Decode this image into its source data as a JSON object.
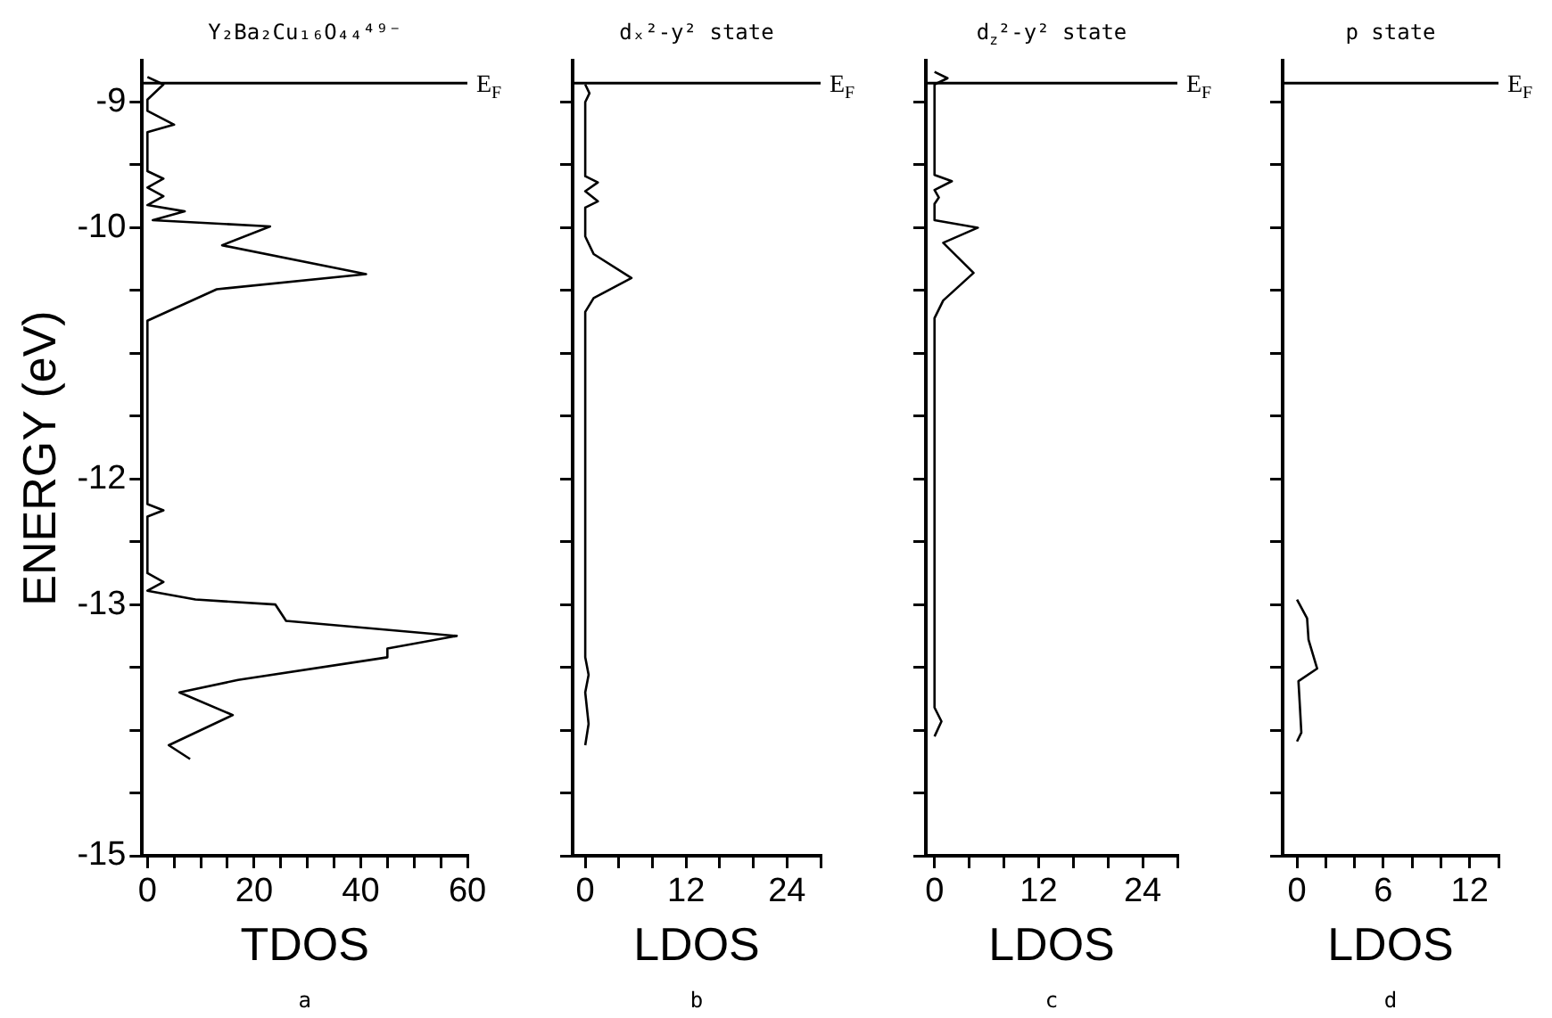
{
  "chart_data": [
    {
      "type": "line",
      "title": "Y₂Ba₂Cu₁₆O₄₄⁴⁹⁻",
      "xlabel": "TDOS",
      "ylabel": "ENERGY (eV)",
      "series": [
        {
          "color": "#000000",
          "x": [
            0,
            3,
            0,
            0,
            5,
            0,
            0,
            3,
            0,
            3,
            0,
            7,
            1,
            23,
            14,
            41,
            13,
            0,
            0,
            3,
            0,
            0,
            3,
            0,
            9,
            24,
            26,
            58,
            45,
            45,
            17,
            6,
            16,
            4,
            8
          ],
          "values": [
            -8.8,
            -8.86,
            -8.98,
            -9.07,
            -9.18,
            -9.24,
            -9.55,
            -9.61,
            -9.68,
            -9.75,
            -9.82,
            -9.87,
            -9.94,
            -9.99,
            -10.14,
            -10.37,
            -10.49,
            -10.74,
            -12.2,
            -12.25,
            -12.3,
            -12.75,
            -12.82,
            -12.89,
            -12.96,
            -13.0,
            -13.13,
            -13.25,
            -13.35,
            -13.42,
            -13.6,
            -13.7,
            -13.88,
            -14.12,
            -14.23
          ]
        }
      ],
      "xlim": [
        -1,
        60
      ],
      "xticks": [
        0,
        {
          "value": 5,
          "label": null
        },
        {
          "value": 10,
          "label": null
        },
        {
          "value": 15,
          "label": null
        },
        20,
        {
          "value": 25,
          "label": null
        },
        {
          "value": 30,
          "label": null
        },
        {
          "value": 35,
          "label": null
        },
        40,
        {
          "value": 45,
          "label": null
        },
        {
          "value": 50,
          "label": null
        },
        {
          "value": 55,
          "label": null
        },
        60
      ],
      "ylim": [
        -15,
        -8.67
      ],
      "yticks": [
        -9,
        {
          "value": -9.5,
          "label": null
        },
        -10,
        {
          "value": -10.5,
          "label": null
        },
        {
          "value": -11,
          "label": null
        },
        {
          "value": -11.5,
          "label": null
        },
        -12,
        {
          "value": -12.5,
          "label": null
        },
        -13,
        {
          "value": -13.5,
          "label": null
        },
        {
          "value": -14,
          "label": null
        },
        {
          "value": -14.5,
          "label": null
        },
        -15
      ],
      "ref_lines": [
        {
          "axis": "y",
          "value": -8.85,
          "label": "E$_{F}$"
        }
      ],
      "annotations": [
        "a"
      ]
    },
    {
      "type": "line",
      "title": "dₓ²-y² state",
      "xlabel": "LDOS",
      "series": [
        {
          "color": "#000000",
          "x": [
            0,
            0.5,
            0,
            0,
            1.5,
            0,
            1.5,
            0,
            0,
            1,
            5.5,
            1,
            0,
            0,
            0.4,
            0,
            0.4,
            0
          ],
          "values": [
            -8.86,
            -8.93,
            -9.0,
            -9.59,
            -9.64,
            -9.71,
            -9.79,
            -9.84,
            -10.07,
            -10.21,
            -10.4,
            -10.56,
            -10.67,
            -13.42,
            -13.56,
            -13.7,
            -13.95,
            -14.12
          ]
        }
      ],
      "xlim": [
        -1.5,
        28
      ],
      "xticks": [
        0,
        {
          "value": 4,
          "label": null
        },
        {
          "value": 8,
          "label": null
        },
        12,
        {
          "value": 16,
          "label": null
        },
        {
          "value": 20,
          "label": null
        },
        24,
        {
          "value": 28,
          "label": null
        }
      ],
      "ylim": [
        -15,
        -8.67
      ],
      "yticks": [
        -9,
        {
          "value": -9.5,
          "label": null
        },
        -10,
        {
          "value": -10.5,
          "label": null
        },
        {
          "value": -11,
          "label": null
        },
        {
          "value": -11.5,
          "label": null
        },
        -12,
        {
          "value": -12.5,
          "label": null
        },
        -13,
        {
          "value": -13.5,
          "label": null
        },
        {
          "value": -14,
          "label": null
        },
        {
          "value": -14.5,
          "label": null
        },
        -15
      ],
      "tick_labels": "x",
      "ref_lines": [
        {
          "axis": "y",
          "value": -8.85,
          "label": "E$_{F}$"
        }
      ],
      "annotations": [
        "b"
      ]
    },
    {
      "type": "line",
      "title": "d$_{z}$²-y² state",
      "xlabel": "LDOS",
      "series": [
        {
          "color": "#000000",
          "x": [
            0,
            1.5,
            0,
            0,
            2,
            0,
            0.5,
            0,
            0,
            5,
            1,
            4.5,
            1,
            0,
            0,
            0.8,
            0
          ],
          "values": [
            -8.76,
            -8.81,
            -8.86,
            -9.58,
            -9.63,
            -9.7,
            -9.76,
            -9.81,
            -9.94,
            -10.0,
            -10.12,
            -10.36,
            -10.58,
            -10.72,
            -13.82,
            -13.93,
            -14.05
          ]
        }
      ],
      "xlim": [
        -1,
        28
      ],
      "xticks": [
        0,
        {
          "value": 4,
          "label": null
        },
        {
          "value": 8,
          "label": null
        },
        12,
        {
          "value": 16,
          "label": null
        },
        {
          "value": 20,
          "label": null
        },
        24,
        {
          "value": 28,
          "label": null
        }
      ],
      "ylim": [
        -15,
        -8.67
      ],
      "yticks": [
        -9,
        {
          "value": -9.5,
          "label": null
        },
        -10,
        {
          "value": -10.5,
          "label": null
        },
        {
          "value": -11,
          "label": null
        },
        {
          "value": -11.5,
          "label": null
        },
        -12,
        {
          "value": -12.5,
          "label": null
        },
        -13,
        {
          "value": -13.5,
          "label": null
        },
        {
          "value": -14,
          "label": null
        },
        {
          "value": -14.5,
          "label": null
        },
        -15
      ],
      "tick_labels": "x",
      "ref_lines": [
        {
          "axis": "y",
          "value": -8.85,
          "label": "E$_{F}$"
        }
      ],
      "annotations": [
        "c"
      ]
    },
    {
      "type": "line",
      "title": "p state",
      "xlabel": "LDOS",
      "series": [
        {
          "color": "#000000",
          "x": [
            0,
            0.7,
            0.8,
            1.4,
            0.1,
            0.2,
            0.3,
            0
          ],
          "values": [
            -12.96,
            -13.11,
            -13.28,
            -13.51,
            -13.61,
            -13.81,
            -14.02,
            -14.09
          ]
        }
      ],
      "xlim": [
        -1,
        14
      ],
      "xticks": [
        0,
        {
          "value": 2,
          "label": null
        },
        {
          "value": 4,
          "label": null
        },
        6,
        {
          "value": 8,
          "label": null
        },
        {
          "value": 10,
          "label": null
        },
        12,
        {
          "value": 14,
          "label": null
        }
      ],
      "ylim": [
        -15,
        -8.67
      ],
      "yticks": [
        -9,
        {
          "value": -9.5,
          "label": null
        },
        -10,
        {
          "value": -10.5,
          "label": null
        },
        {
          "value": -11,
          "label": null
        },
        {
          "value": -11.5,
          "label": null
        },
        -12,
        {
          "value": -12.5,
          "label": null
        },
        -13,
        {
          "value": -13.5,
          "label": null
        },
        {
          "value": -14,
          "label": null
        },
        {
          "value": -14.5,
          "label": null
        },
        -15
      ],
      "tick_labels": "x",
      "ref_lines": [
        {
          "axis": "y",
          "value": -8.85,
          "label": "E$_{F}$"
        }
      ],
      "annotations": [
        "d"
      ]
    }
  ]
}
